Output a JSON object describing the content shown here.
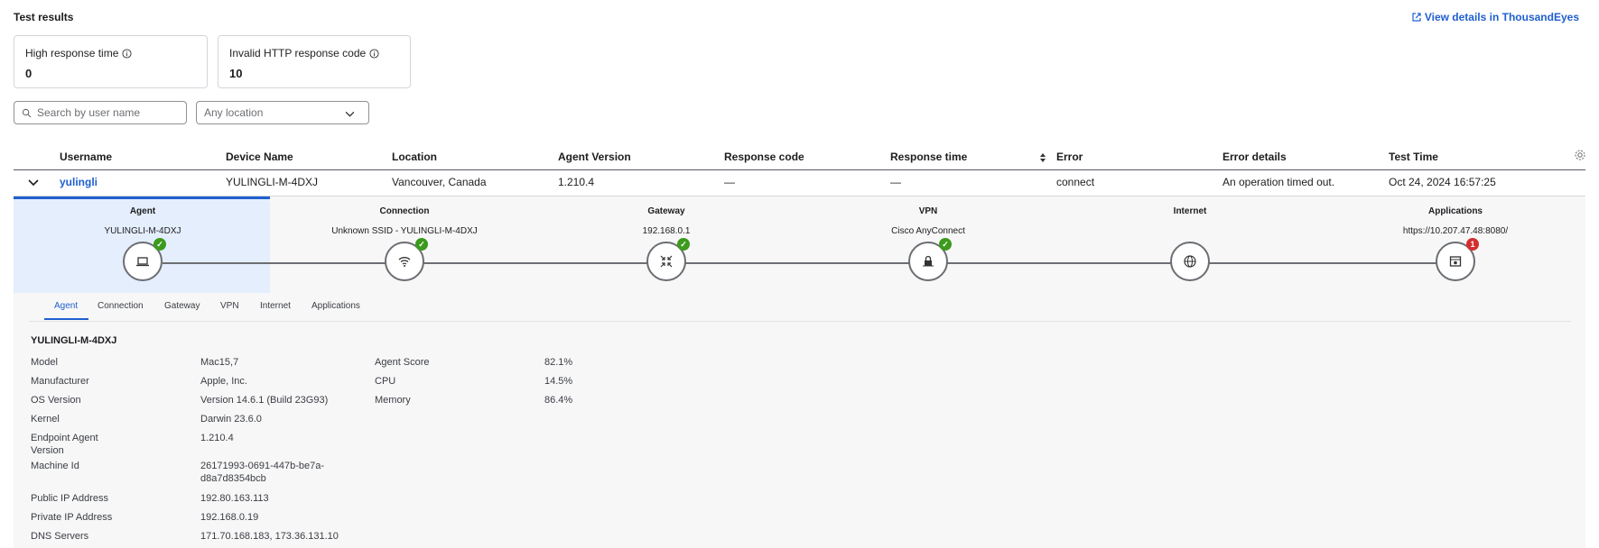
{
  "header": {
    "title": "Test results",
    "external_link": "View details in ThousandEyes"
  },
  "cards": [
    {
      "label": "High response time",
      "value": "0"
    },
    {
      "label": "Invalid HTTP response code",
      "value": "10"
    }
  ],
  "filters": {
    "search_placeholder": "Search by user name",
    "location_value": "Any location"
  },
  "table": {
    "columns": [
      "Username",
      "Device Name",
      "Location",
      "Agent Version",
      "Response code",
      "Response time",
      "Error",
      "Error details",
      "Test Time"
    ],
    "row": {
      "username": "yulingli",
      "device_name": "YULINGLI-M-4DXJ",
      "location": "Vancouver, Canada",
      "agent_version": "1.210.4",
      "response_code": "—",
      "response_time": "—",
      "error": "connect",
      "error_details": "An operation timed out.",
      "test_time": "Oct 24, 2024 16:57:25"
    }
  },
  "path": {
    "steps": [
      {
        "title": "Agent",
        "subtitle": "YULINGLI-M-4DXJ",
        "icon": "laptop-icon",
        "status": "ok"
      },
      {
        "title": "Connection",
        "subtitle": "Unknown SSID - YULINGLI-M-4DXJ",
        "icon": "wifi-icon",
        "status": "ok"
      },
      {
        "title": "Gateway",
        "subtitle": "192.168.0.1",
        "icon": "gateway-icon",
        "status": "ok"
      },
      {
        "title": "VPN",
        "subtitle": "Cisco AnyConnect",
        "icon": "vpn-icon",
        "status": "ok"
      },
      {
        "title": "Internet",
        "subtitle": "",
        "icon": "globe-icon",
        "status": "none"
      },
      {
        "title": "Applications",
        "subtitle": "https://10.207.47.48:8080/",
        "icon": "app-icon",
        "status": "error",
        "badge_count": "1"
      }
    ]
  },
  "detail_tabs": [
    "Agent",
    "Connection",
    "Gateway",
    "VPN",
    "Internet",
    "Applications"
  ],
  "agent_details": {
    "title": "YULINGLI-M-4DXJ",
    "left": [
      {
        "label": "Model",
        "value": "Mac15,7"
      },
      {
        "label": "Manufacturer",
        "value": "Apple, Inc."
      },
      {
        "label": "OS Version",
        "value": "Version 14.6.1 (Build 23G93)"
      },
      {
        "label": "Kernel",
        "value": "Darwin 23.6.0"
      },
      {
        "label": "Endpoint Agent Version",
        "value": "1.210.4"
      },
      {
        "label": "Machine Id",
        "value": "26171993-0691-447b-be7a-d8a7d8354bcb"
      },
      {
        "label": "Public IP Address",
        "value": "192.80.163.113"
      },
      {
        "label": "Private IP Address",
        "value": "192.168.0.19"
      },
      {
        "label": "DNS Servers",
        "value": "171.70.168.183, 173.36.131.10"
      }
    ],
    "right": [
      {
        "label": "Agent Score",
        "value": "82.1%"
      },
      {
        "label": "CPU",
        "value": "14.5%"
      },
      {
        "label": "Memory",
        "value": "86.4%"
      }
    ]
  },
  "colors": {
    "accent": "#1f5fcf",
    "ok": "#3c9a1d",
    "error": "#d32f2f"
  }
}
